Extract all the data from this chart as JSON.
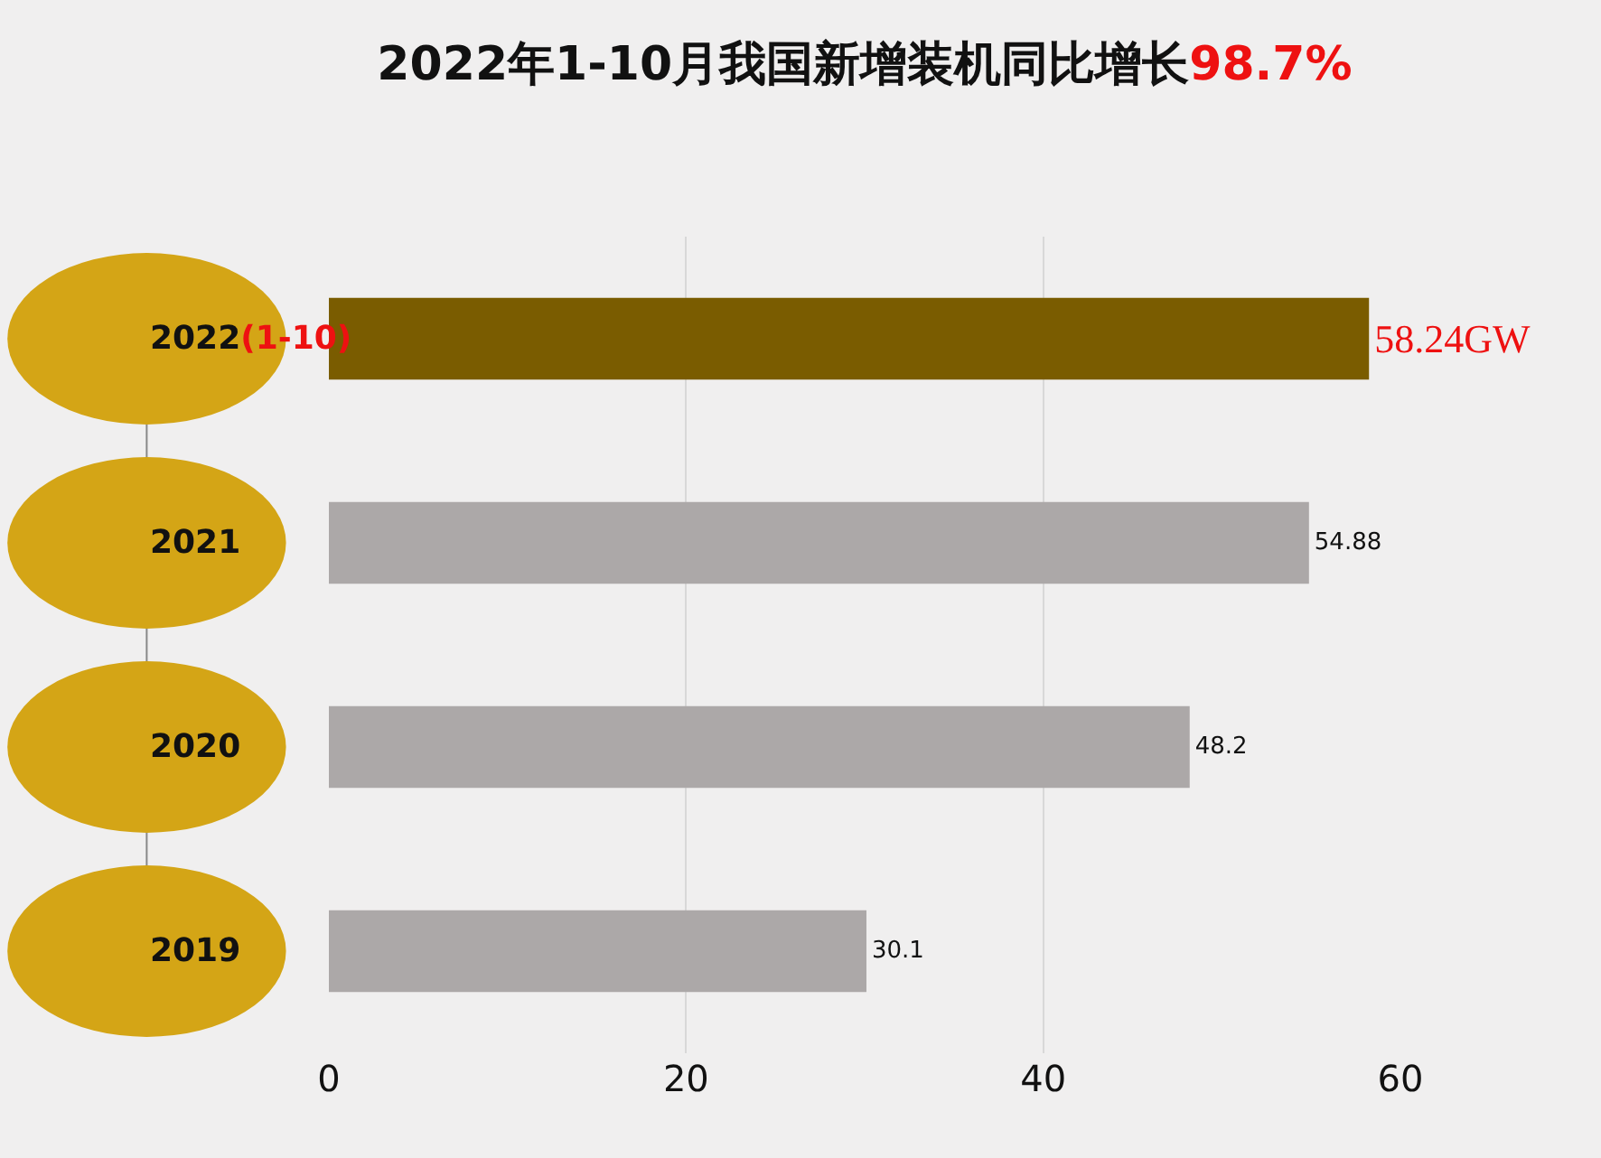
{
  "chart_data": {
    "type": "bar",
    "orientation": "horizontal",
    "title": "2022年1-10月我国新增装机同比增长98.7%",
    "categories": [
      "2022(1-10)",
      "2021",
      "2020",
      "2019"
    ],
    "values": [
      58.24,
      54.88,
      48.2,
      30.1
    ],
    "colors": [
      "#7a5c00",
      "#aca8a8",
      "#aca8a8",
      "#aca8a8"
    ],
    "value_labels": [
      "58.24GW",
      "54.88",
      "48.2",
      "30.1"
    ],
    "xlim": [
      0,
      60
    ],
    "xticks": [
      0,
      20,
      40,
      60
    ],
    "grid": "x"
  }
}
